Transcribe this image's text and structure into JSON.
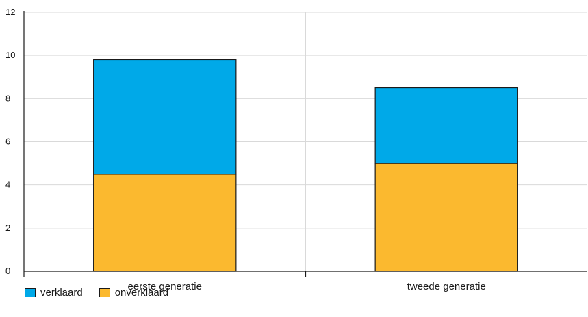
{
  "chart_data": {
    "type": "bar",
    "stacked": true,
    "categories": [
      "eerste generatie",
      "tweede generatie"
    ],
    "series": [
      {
        "name": "onverklaard",
        "values": [
          4.5,
          5.0
        ],
        "color": "#fbb92f"
      },
      {
        "name": "verklaard",
        "values": [
          5.3,
          3.5
        ],
        "color": "#00a9e8"
      }
    ],
    "ylim": [
      0,
      12
    ],
    "yticks": [
      0,
      2,
      4,
      6,
      8,
      10,
      12
    ],
    "grid": true,
    "legend_position": "bottom-left"
  },
  "legend": {
    "items": [
      {
        "label": "verklaard",
        "color": "#00a9e8"
      },
      {
        "label": "onverklaard",
        "color": "#fbb92f"
      }
    ]
  }
}
